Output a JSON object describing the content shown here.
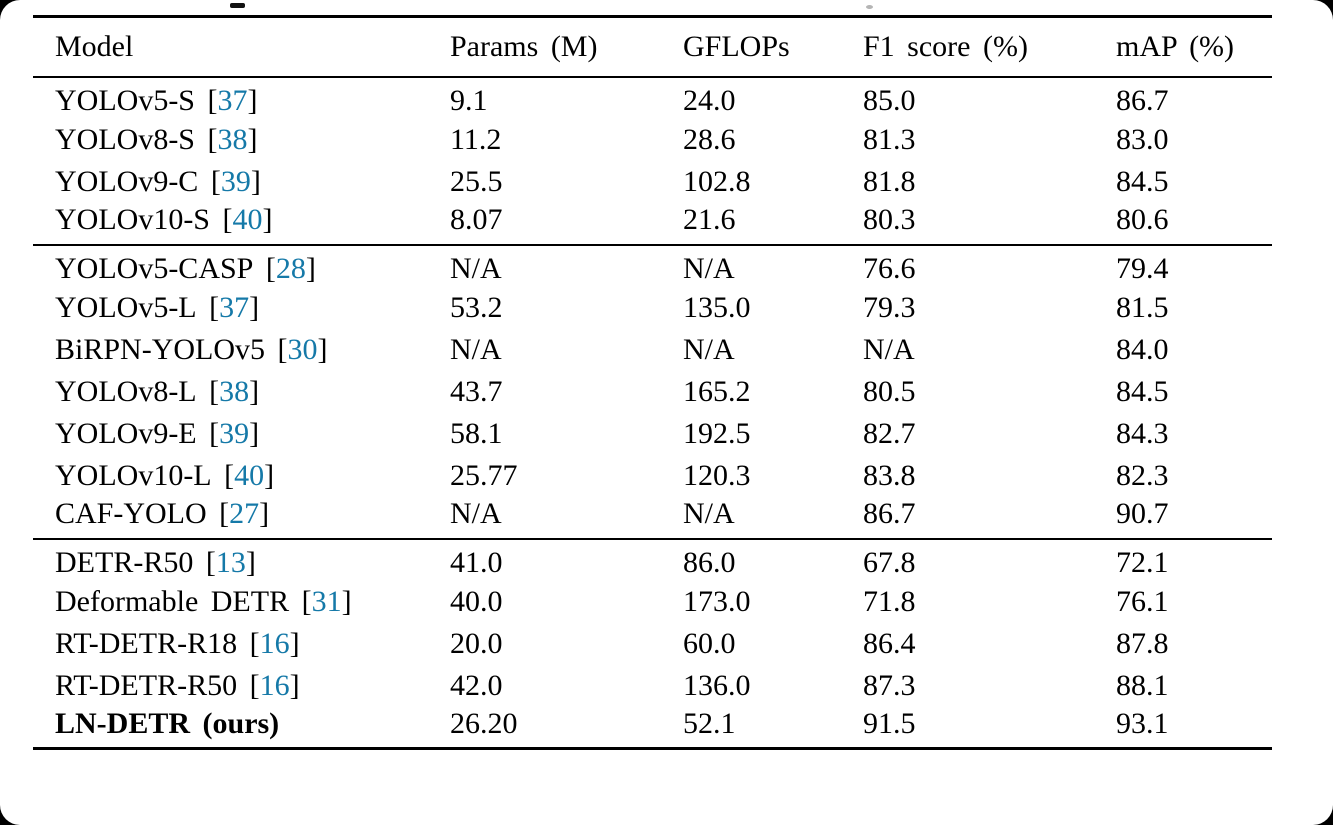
{
  "page": {
    "background_color": "#ffffff",
    "frame_color": "#000000"
  },
  "colors": {
    "text": "#000000",
    "citation": "#1579a8",
    "rule": "#000000"
  },
  "table": {
    "columns": [
      "Model",
      "Params (M)",
      "GFLOPs",
      "F1 score (%)",
      "mAP (%)"
    ],
    "groups": [
      {
        "rows": [
          {
            "model": "YOLOv5-S",
            "ref": "37",
            "params": "9.1",
            "gflops": "24.0",
            "f1": "85.0",
            "map": "86.7"
          },
          {
            "model": "YOLOv8-S",
            "ref": "38",
            "params": "11.2",
            "gflops": "28.6",
            "f1": "81.3",
            "map": "83.0"
          },
          {
            "model": "YOLOv9-C",
            "ref": "39",
            "params": "25.5",
            "gflops": "102.8",
            "f1": "81.8",
            "map": "84.5"
          },
          {
            "model": "YOLOv10-S",
            "ref": "40",
            "params": "8.07",
            "gflops": "21.6",
            "f1": "80.3",
            "map": "80.6"
          }
        ]
      },
      {
        "rows": [
          {
            "model": "YOLOv5-CASP",
            "ref": "28",
            "params": "N/A",
            "gflops": "N/A",
            "f1": "76.6",
            "map": "79.4"
          },
          {
            "model": "YOLOv5-L",
            "ref": "37",
            "params": "53.2",
            "gflops": "135.0",
            "f1": "79.3",
            "map": "81.5"
          },
          {
            "model": "BiRPN-YOLOv5",
            "ref": "30",
            "params": "N/A",
            "gflops": "N/A",
            "f1": "N/A",
            "map": "84.0"
          },
          {
            "model": "YOLOv8-L",
            "ref": "38",
            "params": "43.7",
            "gflops": "165.2",
            "f1": "80.5",
            "map": "84.5"
          },
          {
            "model": "YOLOv9-E",
            "ref": "39",
            "params": "58.1",
            "gflops": "192.5",
            "f1": "82.7",
            "map": "84.3"
          },
          {
            "model": "YOLOv10-L",
            "ref": "40",
            "params": "25.77",
            "gflops": "120.3",
            "f1": "83.8",
            "map": "82.3"
          },
          {
            "model": "CAF-YOLO",
            "ref": "27",
            "params": "N/A",
            "gflops": "N/A",
            "f1": "86.7",
            "map": "90.7"
          }
        ]
      },
      {
        "rows": [
          {
            "model": "DETR-R50",
            "ref": "13",
            "params": "41.0",
            "gflops": "86.0",
            "f1": "67.8",
            "map": "72.1"
          },
          {
            "model": "Deformable DETR",
            "ref": "31",
            "params": "40.0",
            "gflops": "173.0",
            "f1": "71.8",
            "map": "76.1"
          },
          {
            "model": "RT-DETR-R18",
            "ref": "16",
            "params": "20.0",
            "gflops": "60.0",
            "f1": "86.4",
            "map": "87.8"
          },
          {
            "model": "RT-DETR-R50",
            "ref": "16",
            "params": "42.0",
            "gflops": "136.0",
            "f1": "87.3",
            "map": "88.1"
          },
          {
            "model": "LN-DETR (ours)",
            "ref": null,
            "params": "26.20",
            "gflops": "52.1",
            "f1": "91.5",
            "map": "93.1",
            "bold_model": true,
            "bold_f1": true,
            "bold_map": true
          }
        ]
      }
    ]
  }
}
